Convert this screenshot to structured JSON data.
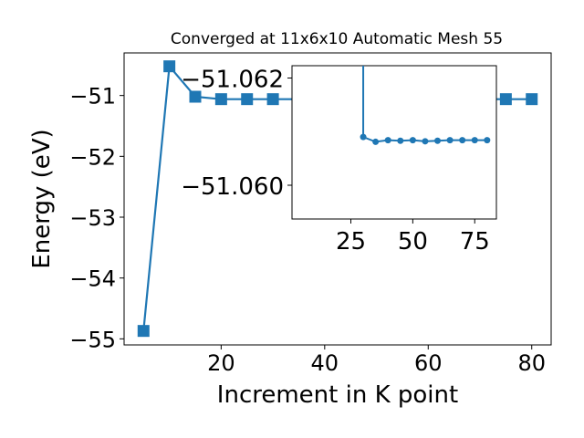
{
  "chart_data": [
    {
      "type": "line",
      "title": "Converged at 11x6x10 Automatic Mesh 55",
      "xlabel": "Increment in K point",
      "ylabel": "Energy (eV)",
      "xlim": [
        1.25,
        83.75
      ],
      "ylim": [
        -55.1,
        -50.3
      ],
      "xticks": [
        20,
        40,
        60,
        80
      ],
      "yticks": [
        -51,
        -52,
        -53,
        -54,
        -55
      ],
      "xtick_labels": [
        "20",
        "40",
        "60",
        "80"
      ],
      "ytick_labels": [
        "−51",
        "−52",
        "−53",
        "−54",
        "−55"
      ],
      "grid": false,
      "color": "#1f77b4",
      "marker": "square",
      "x": [
        5,
        10,
        15,
        20,
        25,
        30,
        35,
        40,
        45,
        50,
        55,
        60,
        65,
        70,
        75,
        80
      ],
      "y": [
        -54.87,
        -50.52,
        -51.02,
        -51.06,
        -51.06,
        -51.06,
        -51.06,
        -51.06,
        -51.06,
        -51.06,
        -51.06,
        -51.06,
        -51.06,
        -51.06,
        -51.06,
        -51.06
      ]
    },
    {
      "type": "line",
      "title": "",
      "xlabel": "",
      "ylabel": "",
      "inset": true,
      "xlim": [
        1.25,
        83.75
      ],
      "ylim": [
        -51.05937,
        -51.06223
      ],
      "xticks": [
        25,
        50,
        75
      ],
      "yticks": [
        -51.062,
        -51.06
      ],
      "xtick_labels": [
        "25",
        "50",
        "75"
      ],
      "ytick_labels": [
        "−51.062",
        "−51.060"
      ],
      "grid": false,
      "color": "#1f77b4",
      "marker": "circle",
      "x": [
        30,
        35,
        40,
        45,
        50,
        55,
        60,
        65,
        70,
        75,
        80
      ],
      "y": [
        -51.0609,
        -51.06081,
        -51.06084,
        -51.06083,
        -51.06084,
        -51.06082,
        -51.06083,
        -51.06084,
        -51.06084,
        -51.06084,
        -51.06084
      ]
    }
  ]
}
